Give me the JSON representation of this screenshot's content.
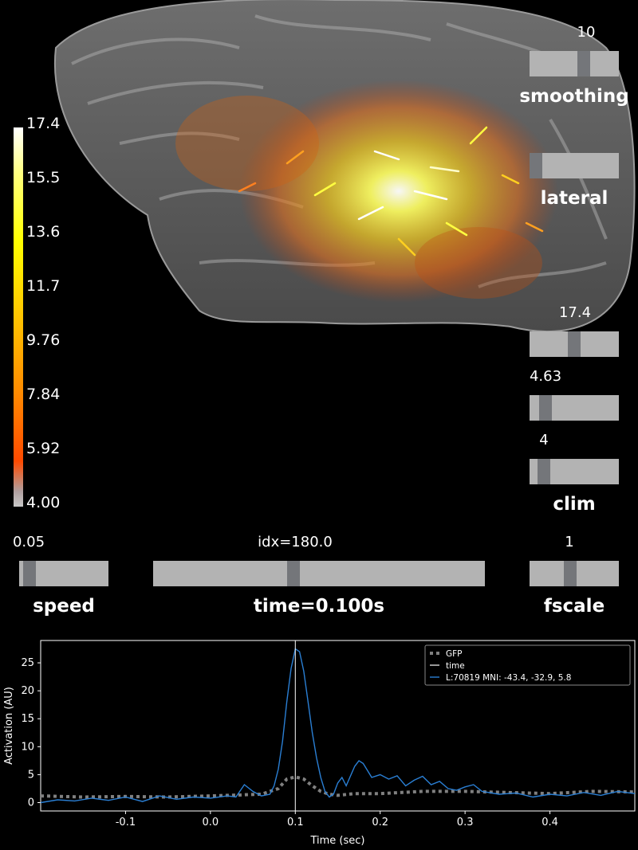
{
  "colorbar": {
    "ticks": [
      "17.4",
      "15.5",
      "13.6",
      "11.7",
      "9.76",
      "7.84",
      "5.92",
      "4.00"
    ]
  },
  "sliders": {
    "smoothing": {
      "value_label": "10",
      "title": "smoothing",
      "position": 0.62
    },
    "orientation": {
      "title": "lateral",
      "position": 0.0
    },
    "clim_max": {
      "value_label": "17.4",
      "position": 0.5
    },
    "clim_mid": {
      "value_label": "4.63",
      "position": 0.13
    },
    "clim_min": {
      "value_label": "4",
      "position": 0.1
    },
    "clim_title": "clim",
    "speed": {
      "value_label": "0.05",
      "title": "speed",
      "position": 0.05
    },
    "time": {
      "value_label": "idx=180.0",
      "title": "time=0.100s",
      "position": 0.42
    },
    "fscale": {
      "value_label": "1",
      "title": "fscale",
      "position": 0.45
    }
  },
  "chart_data": {
    "type": "line",
    "xlabel": "Time (sec)",
    "ylabel": "Activation (AU)",
    "xlim": [
      -0.2,
      0.5
    ],
    "ylim": [
      -1.5,
      29
    ],
    "xticks": [
      "-0.1",
      "0.0",
      "0.1",
      "0.2",
      "0.3",
      "0.4"
    ],
    "xtick_values": [
      -0.1,
      0.0,
      0.1,
      0.2,
      0.3,
      0.4
    ],
    "yticks": [
      "0",
      "5",
      "10",
      "15",
      "20",
      "25"
    ],
    "ytick_values": [
      0,
      5,
      10,
      15,
      20,
      25
    ],
    "time_marker": 0.1,
    "legend": {
      "placement": "top-right",
      "entries": [
        "GFP",
        "time",
        "L:70819  MNI: -43.4, -32.9,   5.8"
      ]
    },
    "series": [
      {
        "name": "GFP",
        "color": "#808080",
        "style": "dotted",
        "x": [
          -0.2,
          -0.15,
          -0.1,
          -0.05,
          0.0,
          0.02,
          0.04,
          0.06,
          0.08,
          0.09,
          0.1,
          0.11,
          0.12,
          0.13,
          0.14,
          0.15,
          0.17,
          0.2,
          0.25,
          0.3,
          0.35,
          0.4,
          0.45,
          0.5
        ],
        "y": [
          1.2,
          1.0,
          1.1,
          1.0,
          1.2,
          1.3,
          1.4,
          1.5,
          2.5,
          4.2,
          4.6,
          4.2,
          3.0,
          2.0,
          1.5,
          1.3,
          1.6,
          1.6,
          2.0,
          2.0,
          1.8,
          1.6,
          2.0,
          1.9
        ]
      },
      {
        "name": "L:70819  MNI: -43.4, -32.9,   5.8",
        "color": "#2a7fd4",
        "style": "solid",
        "x": [
          -0.2,
          -0.18,
          -0.16,
          -0.14,
          -0.12,
          -0.1,
          -0.08,
          -0.06,
          -0.04,
          -0.02,
          0.0,
          0.02,
          0.03,
          0.04,
          0.05,
          0.06,
          0.07,
          0.075,
          0.08,
          0.085,
          0.09,
          0.095,
          0.1,
          0.105,
          0.11,
          0.115,
          0.12,
          0.125,
          0.13,
          0.135,
          0.14,
          0.145,
          0.15,
          0.155,
          0.16,
          0.17,
          0.175,
          0.18,
          0.19,
          0.2,
          0.21,
          0.22,
          0.23,
          0.24,
          0.25,
          0.26,
          0.27,
          0.28,
          0.29,
          0.3,
          0.31,
          0.32,
          0.34,
          0.36,
          0.38,
          0.4,
          0.42,
          0.44,
          0.46,
          0.48,
          0.5
        ],
        "y": [
          0.0,
          0.5,
          0.3,
          0.8,
          0.4,
          1.0,
          0.2,
          1.2,
          0.6,
          1.0,
          0.8,
          1.2,
          1.0,
          3.2,
          2.0,
          1.2,
          1.5,
          3.0,
          6.0,
          11.0,
          18.0,
          24.0,
          27.5,
          27.0,
          23.5,
          18.0,
          12.5,
          8.0,
          4.5,
          2.0,
          1.0,
          1.5,
          3.5,
          4.5,
          3.0,
          6.5,
          7.5,
          7.0,
          4.5,
          5.0,
          4.2,
          4.8,
          3.0,
          4.0,
          4.7,
          3.2,
          3.8,
          2.5,
          2.2,
          2.8,
          3.2,
          2.0,
          1.5,
          1.7,
          1.0,
          1.5,
          1.2,
          1.8,
          1.3,
          2.0,
          1.6
        ]
      }
    ]
  }
}
